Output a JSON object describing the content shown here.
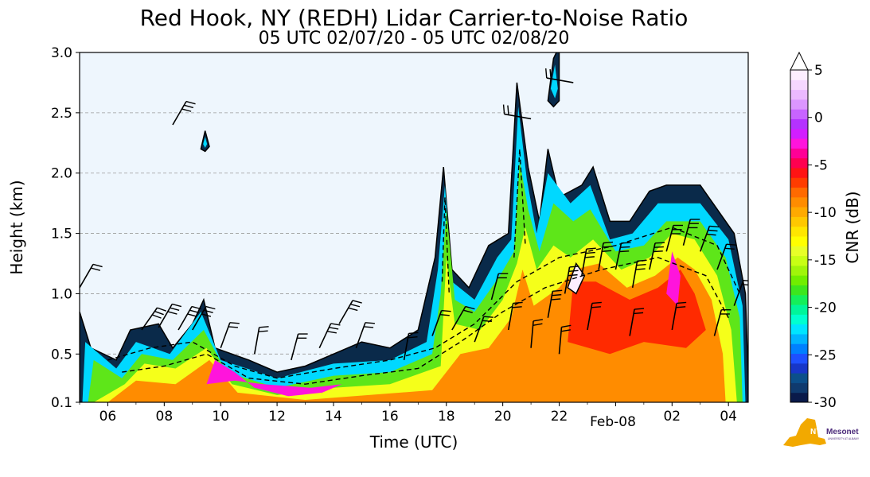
{
  "chart_data": {
    "type": "heatmap",
    "title": "Red Hook, NY (REDH) Lidar Carrier-to-Noise Ratio",
    "subtitle": "05 UTC 02/07/20 - 05 UTC 02/08/20",
    "xlabel": "Time (UTC)",
    "ylabel": "Height (km)",
    "x_tick_labels": [
      "06",
      "08",
      "10",
      "12",
      "14",
      "16",
      "18",
      "20",
      "22",
      "02",
      "04"
    ],
    "x_tick_hours": [
      6,
      8,
      10,
      12,
      14,
      16,
      18,
      20,
      22,
      26,
      28
    ],
    "x_date_label": "Feb-08",
    "xlim_hours": [
      5,
      28.7
    ],
    "y_tick_labels": [
      "0.1",
      "0.5",
      "1.0",
      "1.5",
      "2.0",
      "2.5",
      "3.0"
    ],
    "y_ticks": [
      0.1,
      0.5,
      1.0,
      1.5,
      2.0,
      2.5,
      3.0
    ],
    "ylim": [
      0.1,
      3.0
    ],
    "grid": "horizontal dashed",
    "colorbar": {
      "label": "CNR (dB)",
      "range": [
        -30,
        5
      ],
      "tick_labels": [
        "5",
        "0",
        "-5",
        "-10",
        "-15",
        "-20",
        "-25",
        "-30"
      ],
      "ticks": [
        5,
        0,
        -5,
        -10,
        -15,
        -20,
        -25,
        -30
      ],
      "colors": [
        "#0a1a4a",
        "#0f3a6e",
        "#0b4f8a",
        "#1736c8",
        "#1e50ff",
        "#0080ff",
        "#00b4ff",
        "#00e5ff",
        "#00ffd0",
        "#00f59a",
        "#14ef5a",
        "#3ce61e",
        "#70ee00",
        "#a0f50a",
        "#c8ff14",
        "#e8ff28",
        "#ffff00",
        "#ffe600",
        "#ffc800",
        "#ffaa00",
        "#ff8c00",
        "#ff6a00",
        "#ff3c00",
        "#ff1414",
        "#ff0050",
        "#ff0096",
        "#ff14dc",
        "#d21eff",
        "#b432ff",
        "#c864ff",
        "#dc96ff",
        "#ebb9ff",
        "#f5d7ff",
        "#fdeeff"
      ]
    },
    "plot_background": "#eef6fd",
    "note_visible_features": "CNR shaded contours with wind barbs; clouds near 1.0-2.0 km after 18 UTC"
  },
  "logo": {
    "name": "NYS Mesonet",
    "text_main": "NYS",
    "text_secondary": "Mesonet",
    "text_small": "UNIVERSITY AT ALBANY",
    "color_state": "#f2a900",
    "color_text": "#4b2a7a"
  }
}
